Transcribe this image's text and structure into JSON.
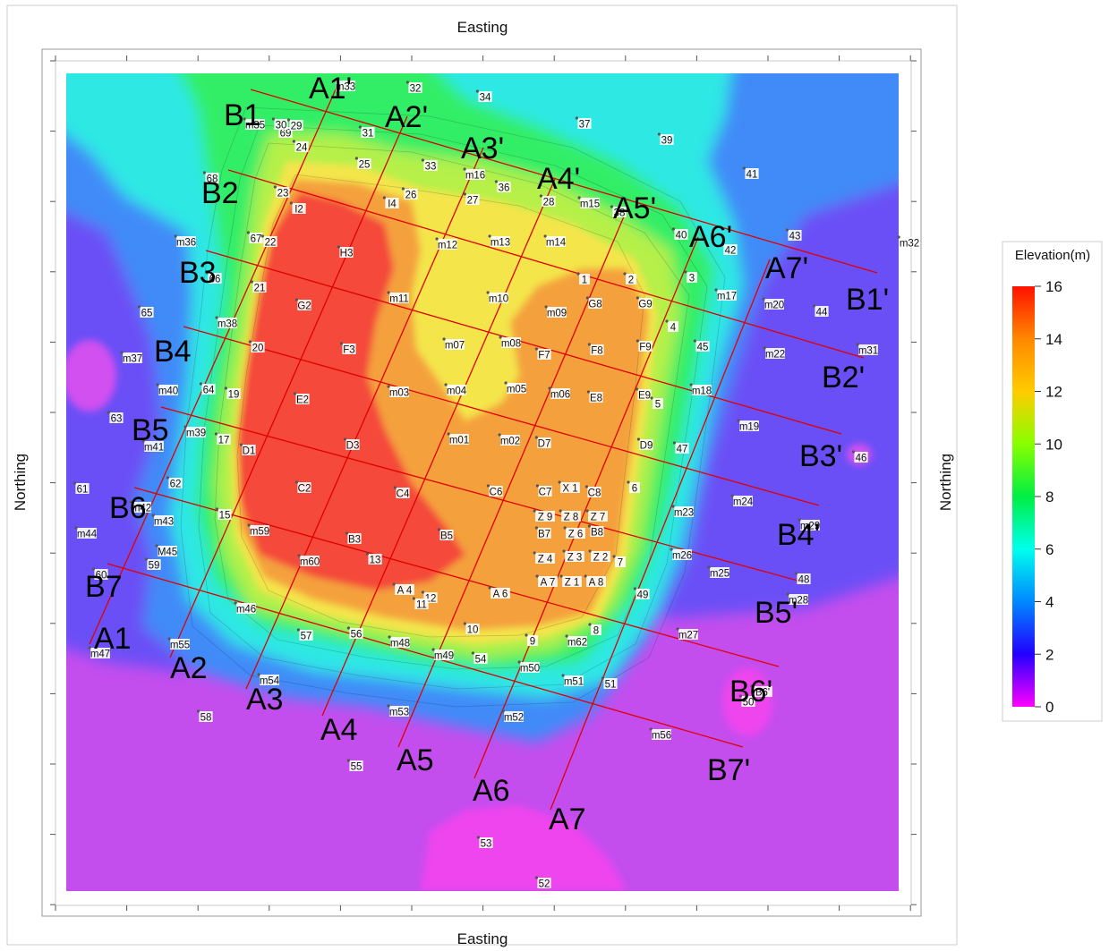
{
  "axis_titles": {
    "top": "Easting",
    "bottom": "Easting",
    "left": "Northing",
    "right": "Northing"
  },
  "legend": {
    "title": "Elevation(m)",
    "ticks": [
      "16",
      "14",
      "12",
      "10",
      "8",
      "6",
      "4",
      "2",
      "0"
    ],
    "colors": [
      "#ff2200",
      "#ff9900",
      "#ffcc00",
      "#88ff00",
      "#00ee44",
      "#00ffee",
      "#0088ff",
      "#2200ff",
      "#ff00ff"
    ]
  },
  "zone_colors": {
    "background_low": "#c44dee",
    "magenta": "#ee44ee",
    "violet": "#6a4ff6",
    "blue": "#3f8bf8",
    "cyan": "#2fe8e4",
    "green": "#33ee66",
    "yellowgreen": "#b6f04a",
    "yellow": "#f4e54c",
    "orange": "#f4a13c",
    "red": "#f4493a"
  },
  "section_lines": {
    "A": [
      {
        "start": "A1",
        "end": "A1'"
      },
      {
        "start": "A2",
        "end": "A2'"
      },
      {
        "start": "A3",
        "end": "A3'"
      },
      {
        "start": "A4",
        "end": "A4'"
      },
      {
        "start": "A5",
        "end": "A5'"
      },
      {
        "start": "A6",
        "end": "A6'"
      },
      {
        "start": "A7",
        "end": "A7'"
      }
    ],
    "B": [
      {
        "start": "B1",
        "end": "B1'"
      },
      {
        "start": "B2",
        "end": "B2'"
      },
      {
        "start": "B3",
        "end": "B3'"
      },
      {
        "start": "B4",
        "end": "B4'"
      },
      {
        "start": "B5",
        "end": "B5'"
      },
      {
        "start": "B6",
        "end": "B6'"
      },
      {
        "start": "B7",
        "end": "B7'"
      }
    ]
  },
  "survey_points": [
    "m33",
    "32",
    "34",
    "37",
    "39",
    "41",
    "m32",
    "43",
    "44",
    "m20",
    "m17",
    "42",
    "40",
    "38",
    "m15",
    "28",
    "36",
    "m16",
    "33",
    "25",
    "31",
    "24",
    "69",
    "30",
    "29",
    "m35",
    "68",
    "23",
    "I2",
    "I4",
    "26",
    "27",
    "m12",
    "m13",
    "m14",
    "1",
    "2",
    "3",
    "4",
    "G9",
    "G8",
    "m09",
    "m10",
    "m11",
    "G2",
    "H3",
    "67",
    "22",
    "m36",
    "66",
    "21",
    "m38",
    "20",
    "65",
    "m37",
    "m40",
    "64",
    "19",
    "63",
    "m39",
    "17",
    "m41",
    "D1",
    "D3",
    "E2",
    "F3",
    "m03",
    "m04",
    "m05",
    "m06",
    "m07",
    "m08",
    "F7",
    "F8",
    "F9",
    "E8",
    "E9",
    "5",
    "m18",
    "45",
    "m22",
    "m31",
    "m19",
    "m24",
    "B6'",
    "46",
    "D9",
    "47",
    "6",
    "D7",
    "m02",
    "m01",
    "C7",
    "X 1",
    "C8",
    "C6",
    "C4",
    "C2",
    "62",
    "61",
    "m42",
    "m43",
    "m44",
    "15",
    "m59",
    "B3",
    "B5",
    "M45",
    "59",
    "60",
    "m60",
    "13",
    "A 4",
    "12",
    "11",
    "A 6",
    "Z 9",
    "Z 8",
    "Z 7",
    "B7",
    "Z 6",
    "B8",
    "Z 4",
    "Z 3",
    "Z 2",
    "7",
    "A 7",
    "Z 1",
    "A 8",
    "m23",
    "m26",
    "m25",
    "48",
    "m29",
    "m28",
    "49",
    "m46",
    "57",
    "56",
    "m48",
    "10",
    "m49",
    "54",
    "9",
    "8",
    "m62",
    "m50",
    "m51",
    "51",
    "m27",
    "m55",
    "m47",
    "m54",
    "58",
    "m53",
    "m52",
    "50",
    "m56",
    "55",
    "53",
    "52"
  ]
}
